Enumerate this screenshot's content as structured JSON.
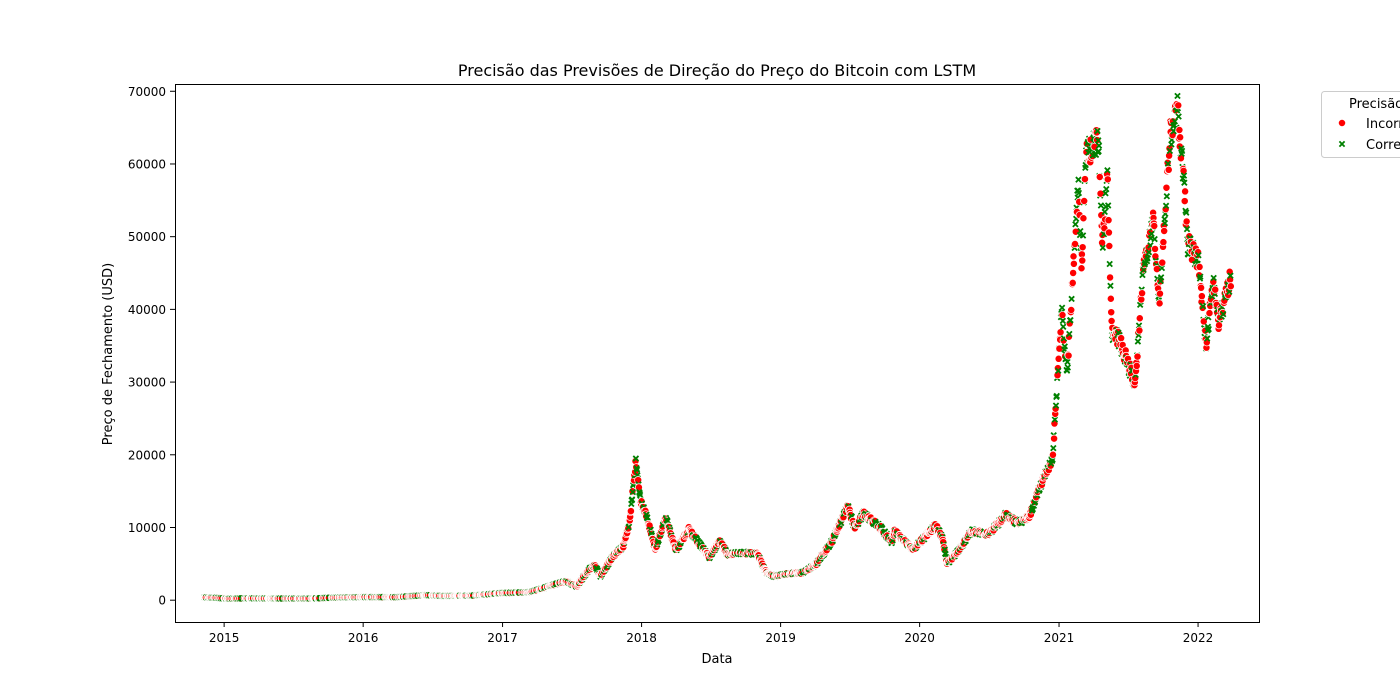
{
  "chart_data": {
    "type": "scatter",
    "title": "Precisão das Previsões de Direção do Preço do Bitcoin com LSTM",
    "xlabel": "Data",
    "ylabel": "Preço de Fechamento (USD)",
    "xlim": [
      "2014-08-25",
      "2022-06-10"
    ],
    "ylim": [
      -3000,
      71000
    ],
    "x_ticks": [
      "2015",
      "2016",
      "2017",
      "2018",
      "2019",
      "2020",
      "2021",
      "2022"
    ],
    "y_ticks": [
      0,
      10000,
      20000,
      30000,
      40000,
      50000,
      60000,
      70000
    ],
    "grid": false,
    "legend": {
      "title": "Precisão",
      "position": "outside-top-right",
      "entries": [
        {
          "label": "Incorreta",
          "marker": "circle",
          "color": "#ff0000"
        },
        {
          "label": "Correta",
          "marker": "x",
          "color": "#008000"
        }
      ]
    },
    "price_path": [
      [
        "2014-11-10",
        400
      ],
      [
        "2014-12-15",
        330
      ],
      [
        "2015-01-14",
        200
      ],
      [
        "2015-03-01",
        260
      ],
      [
        "2015-06-01",
        230
      ],
      [
        "2015-08-15",
        230
      ],
      [
        "2015-11-05",
        380
      ],
      [
        "2016-01-01",
        430
      ],
      [
        "2016-04-01",
        420
      ],
      [
        "2016-06-15",
        700
      ],
      [
        "2016-08-01",
        580
      ],
      [
        "2016-10-15",
        640
      ],
      [
        "2017-01-01",
        990
      ],
      [
        "2017-03-15",
        1100
      ],
      [
        "2017-05-20",
        2200
      ],
      [
        "2017-06-15",
        2600
      ],
      [
        "2017-07-15",
        1900
      ],
      [
        "2017-08-15",
        4200
      ],
      [
        "2017-09-01",
        4800
      ],
      [
        "2017-09-15",
        3300
      ],
      [
        "2017-10-15",
        5800
      ],
      [
        "2017-11-15",
        7500
      ],
      [
        "2017-12-01",
        11000
      ],
      [
        "2017-12-17",
        19200
      ],
      [
        "2017-12-30",
        13500
      ],
      [
        "2018-01-15",
        11500
      ],
      [
        "2018-02-06",
        6900
      ],
      [
        "2018-03-05",
        11500
      ],
      [
        "2018-04-01",
        6800
      ],
      [
        "2018-05-05",
        9800
      ],
      [
        "2018-06-28",
        5900
      ],
      [
        "2018-07-25",
        8200
      ],
      [
        "2018-08-15",
        6300
      ],
      [
        "2018-09-15",
        6500
      ],
      [
        "2018-11-01",
        6400
      ],
      [
        "2018-11-25",
        3800
      ],
      [
        "2018-12-15",
        3250
      ],
      [
        "2019-01-15",
        3600
      ],
      [
        "2019-03-01",
        3800
      ],
      [
        "2019-04-05",
        5000
      ],
      [
        "2019-05-15",
        8000
      ],
      [
        "2019-06-26",
        12900
      ],
      [
        "2019-07-15",
        10000
      ],
      [
        "2019-08-06",
        11900
      ],
      [
        "2019-09-20",
        10000
      ],
      [
        "2019-10-20",
        8000
      ],
      [
        "2019-10-27",
        9500
      ],
      [
        "2019-12-15",
        7000
      ],
      [
        "2020-02-12",
        10300
      ],
      [
        "2020-03-01",
        8600
      ],
      [
        "2020-03-13",
        5000
      ],
      [
        "2020-04-15",
        7000
      ],
      [
        "2020-05-15",
        9500
      ],
      [
        "2020-07-01",
        9100
      ],
      [
        "2020-08-15",
        11800
      ],
      [
        "2020-09-15",
        10600
      ],
      [
        "2020-10-15",
        11500
      ],
      [
        "2020-11-15",
        16000
      ],
      [
        "2020-12-15",
        19500
      ],
      [
        "2021-01-08",
        40000
      ],
      [
        "2021-01-22",
        31000
      ],
      [
        "2021-02-21",
        57500
      ],
      [
        "2021-03-01",
        45500
      ],
      [
        "2021-03-13",
        61300
      ],
      [
        "2021-04-14",
        63500
      ],
      [
        "2021-04-25",
        49000
      ],
      [
        "2021-05-08",
        58000
      ],
      [
        "2021-05-20",
        37000
      ],
      [
        "2021-06-10",
        35500
      ],
      [
        "2021-07-20",
        29800
      ],
      [
        "2021-08-10",
        45500
      ],
      [
        "2021-09-06",
        52000
      ],
      [
        "2021-09-21",
        41000
      ],
      [
        "2021-10-20",
        64000
      ],
      [
        "2021-11-08",
        67500
      ],
      [
        "2021-11-25",
        57000
      ],
      [
        "2021-12-05",
        49000
      ],
      [
        "2022-01-01",
        47000
      ],
      [
        "2022-01-22",
        35000
      ],
      [
        "2022-02-10",
        44000
      ],
      [
        "2022-02-24",
        38000
      ],
      [
        "2022-03-28",
        44500
      ]
    ]
  }
}
